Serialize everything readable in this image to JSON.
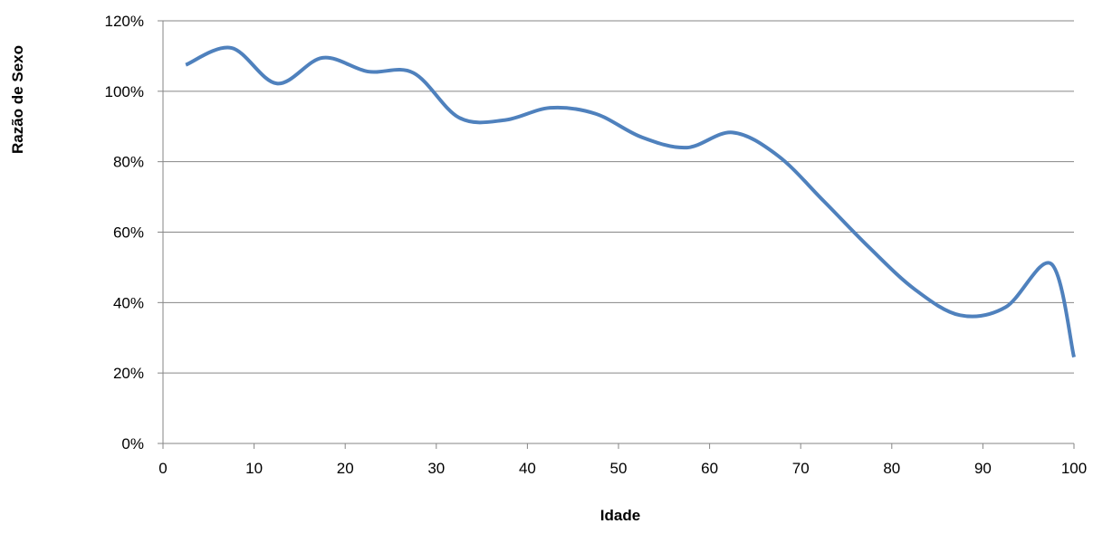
{
  "chart_data": {
    "type": "line",
    "title": "",
    "xlabel": "Idade",
    "ylabel": "Razão de Sexo",
    "xlim": [
      0,
      100
    ],
    "ylim": [
      0,
      120
    ],
    "xticks": [
      0,
      10,
      20,
      30,
      40,
      50,
      60,
      70,
      80,
      90,
      100
    ],
    "yticks": [
      0,
      20,
      40,
      60,
      80,
      100,
      120
    ],
    "x_tick_labels": [
      "0",
      "10",
      "20",
      "30",
      "40",
      "50",
      "60",
      "70",
      "80",
      "90",
      "100"
    ],
    "y_tick_labels": [
      "0%",
      "20%",
      "40%",
      "60%",
      "80%",
      "100%",
      "120%"
    ],
    "grid": true,
    "legend": "none",
    "series": [
      {
        "color": "#4F81BD",
        "smooth": true,
        "x": [
          2.5,
          7.5,
          12.5,
          17.5,
          22.5,
          27.5,
          32.5,
          37.5,
          42.5,
          47.5,
          52.5,
          57.5,
          62.5,
          67.5,
          72.5,
          77.5,
          82.5,
          87.5,
          92.5,
          97.5,
          100
        ],
        "y": [
          107.5,
          112.3,
          102.2,
          109.5,
          105.6,
          105.2,
          92.5,
          91.8,
          95.3,
          93.6,
          87.0,
          84.0,
          88.3,
          81.7,
          68.9,
          55.7,
          43.8,
          36.4,
          38.7,
          51.0,
          24.5
        ]
      }
    ]
  }
}
